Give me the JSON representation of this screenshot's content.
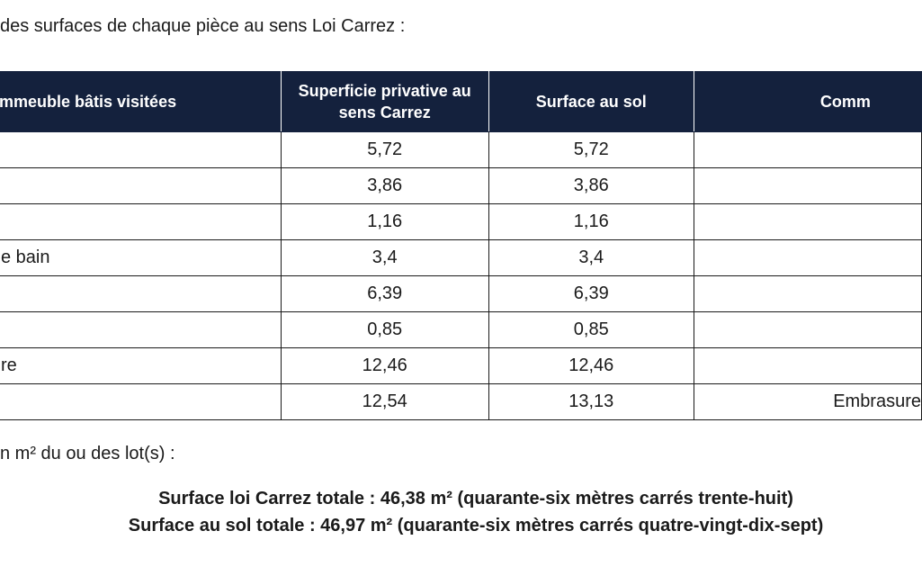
{
  "intro_text": "des surfaces de chaque pièce au sens Loi Carrez :",
  "table": {
    "headers": [
      "mmeuble bâtis visitées",
      "Superficie privative au sens Carrez",
      "Surface au sol",
      "Comm"
    ],
    "rows": [
      {
        "room": "",
        "carrez": "5,72",
        "sol": "5,72",
        "comment": ""
      },
      {
        "room": "",
        "carrez": "3,86",
        "sol": "3,86",
        "comment": ""
      },
      {
        "room": "",
        "carrez": "1,16",
        "sol": "1,16",
        "comment": ""
      },
      {
        "room": "e bain",
        "carrez": "3,4",
        "sol": "3,4",
        "comment": ""
      },
      {
        "room": "",
        "carrez": "6,39",
        "sol": "6,39",
        "comment": ""
      },
      {
        "room": "",
        "carrez": "0,85",
        "sol": "0,85",
        "comment": ""
      },
      {
        "room": "re",
        "carrez": "12,46",
        "sol": "12,46",
        "comment": ""
      },
      {
        "room": "",
        "carrez": "12,54",
        "sol": "13,13",
        "comment": "Embrasure"
      }
    ]
  },
  "total_label": "n m² du ou des lot(s) :",
  "totals": {
    "carrez": "Surface loi Carrez totale : 46,38 m² (quarante-six mètres carrés trente-huit)",
    "sol": "Surface au sol totale : 46,97 m² (quarante-six mètres carrés quatre-vingt-dix-sept)"
  },
  "colors": {
    "header_bg": "#14213d",
    "header_text": "#ffffff",
    "border": "#1a1a1a"
  }
}
